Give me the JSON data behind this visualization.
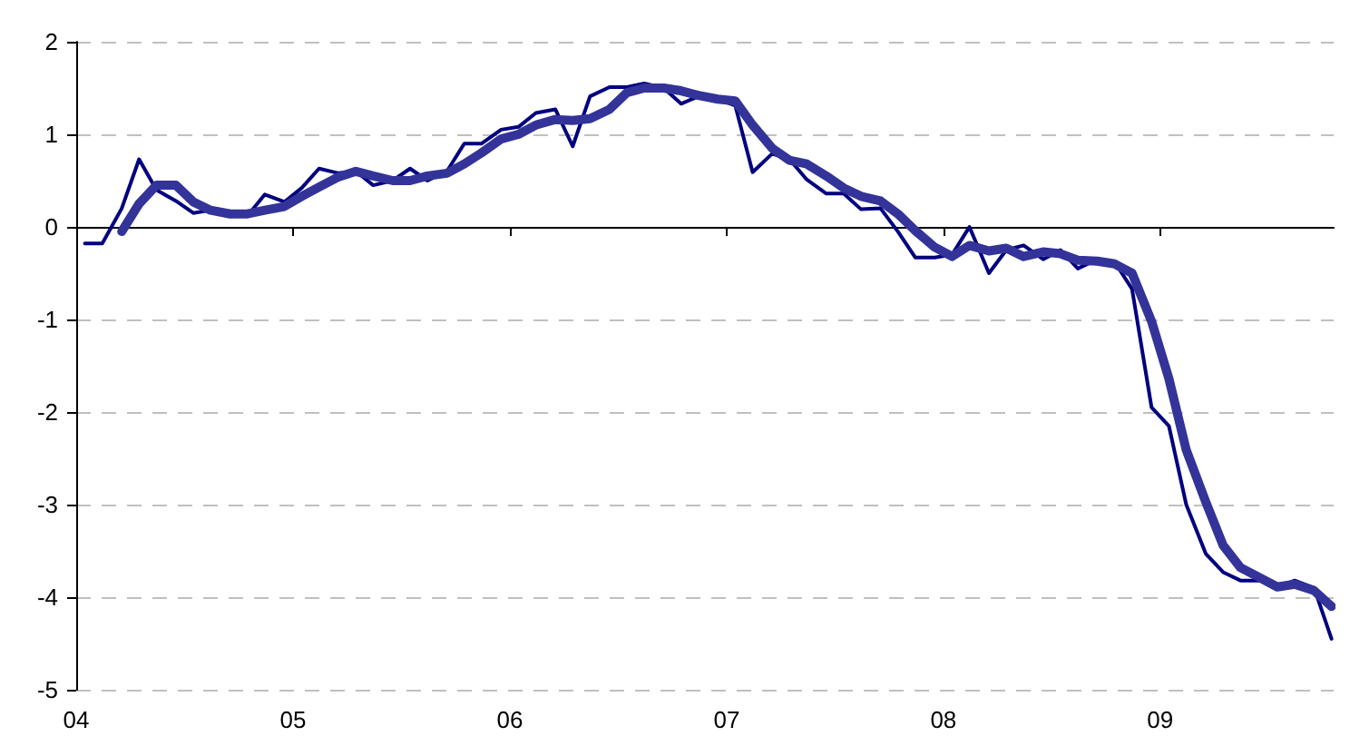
{
  "chart_data": {
    "type": "line",
    "x": [
      2004.04,
      2004.12,
      2004.21,
      2004.29,
      2004.37,
      2004.46,
      2004.54,
      2004.62,
      2004.71,
      2004.79,
      2004.87,
      2004.96,
      2005.04,
      2005.12,
      2005.21,
      2005.29,
      2005.37,
      2005.46,
      2005.54,
      2005.62,
      2005.71,
      2005.79,
      2005.87,
      2005.96,
      2006.04,
      2006.12,
      2006.21,
      2006.29,
      2006.37,
      2006.46,
      2006.54,
      2006.62,
      2006.71,
      2006.79,
      2006.87,
      2006.96,
      2007.04,
      2007.12,
      2007.21,
      2007.29,
      2007.37,
      2007.46,
      2007.54,
      2007.62,
      2007.71,
      2007.79,
      2007.87,
      2007.96,
      2008.04,
      2008.12,
      2008.21,
      2008.29,
      2008.37,
      2008.46,
      2008.54,
      2008.62,
      2008.71,
      2008.79,
      2008.87,
      2008.96,
      2009.04,
      2009.12,
      2009.21,
      2009.29,
      2009.37,
      2009.46,
      2009.54,
      2009.62,
      2009.71,
      2009.79
    ],
    "series": [
      {
        "color": "#000080",
        "line_style": "solid",
        "values": [
          -0.18,
          -0.18,
          0.2,
          0.73,
          0.4,
          0.28,
          0.15,
          0.18,
          0.12,
          0.12,
          0.35,
          0.27,
          0.42,
          0.63,
          0.58,
          0.6,
          0.45,
          0.5,
          0.63,
          0.5,
          0.6,
          0.9,
          0.9,
          1.05,
          1.08,
          1.23,
          1.27,
          0.87,
          1.41,
          1.51,
          1.51,
          1.55,
          1.5,
          1.33,
          1.41,
          1.38,
          1.31,
          0.59,
          0.79,
          0.73,
          0.51,
          0.36,
          0.36,
          0.19,
          0.2,
          -0.05,
          -0.33,
          -0.33,
          -0.3,
          0,
          -0.5,
          -0.25,
          -0.2,
          -0.35,
          -0.25,
          -0.45,
          -0.35,
          -0.38,
          -0.67,
          -1.95,
          -2.15,
          -3.0,
          -3.53,
          -3.73,
          -3.82,
          -3.82,
          -3.9,
          -3.82,
          -3.9,
          -4.45
        ]
      },
      {
        "color": "#333399",
        "line_style": "solid",
        "values": [
          null,
          null,
          -0.05,
          0.25,
          0.45,
          0.45,
          0.27,
          0.18,
          0.14,
          0.14,
          0.18,
          0.22,
          0.33,
          0.43,
          0.54,
          0.6,
          0.55,
          0.5,
          0.5,
          0.55,
          0.58,
          0.68,
          0.8,
          0.95,
          1.0,
          1.1,
          1.16,
          1.15,
          1.17,
          1.27,
          1.45,
          1.5,
          1.5,
          1.47,
          1.42,
          1.38,
          1.36,
          1.1,
          0.85,
          0.72,
          0.68,
          0.55,
          0.42,
          0.33,
          0.28,
          0.14,
          -0.04,
          -0.22,
          -0.32,
          -0.2,
          -0.26,
          -0.23,
          -0.32,
          -0.27,
          -0.29,
          -0.36,
          -0.37,
          -0.4,
          -0.5,
          -1.02,
          -1.64,
          -2.41,
          -2.97,
          -3.44,
          -3.68,
          -3.79,
          -3.89,
          -3.86,
          -3.93,
          -4.1
        ]
      }
    ],
    "xlim": [
      2004,
      2009.8
    ],
    "xticks": [
      {
        "value": 2004,
        "label": "04"
      },
      {
        "value": 2005,
        "label": "05"
      },
      {
        "value": 2006,
        "label": "06"
      },
      {
        "value": 2007,
        "label": "07"
      },
      {
        "value": 2008,
        "label": "08"
      },
      {
        "value": 2009,
        "label": "09"
      }
    ],
    "ylim": [
      -5,
      2
    ],
    "yticks": [
      -5,
      -4,
      -3,
      -2,
      -1,
      0,
      1,
      2
    ],
    "grid": "y",
    "marker": "none"
  }
}
